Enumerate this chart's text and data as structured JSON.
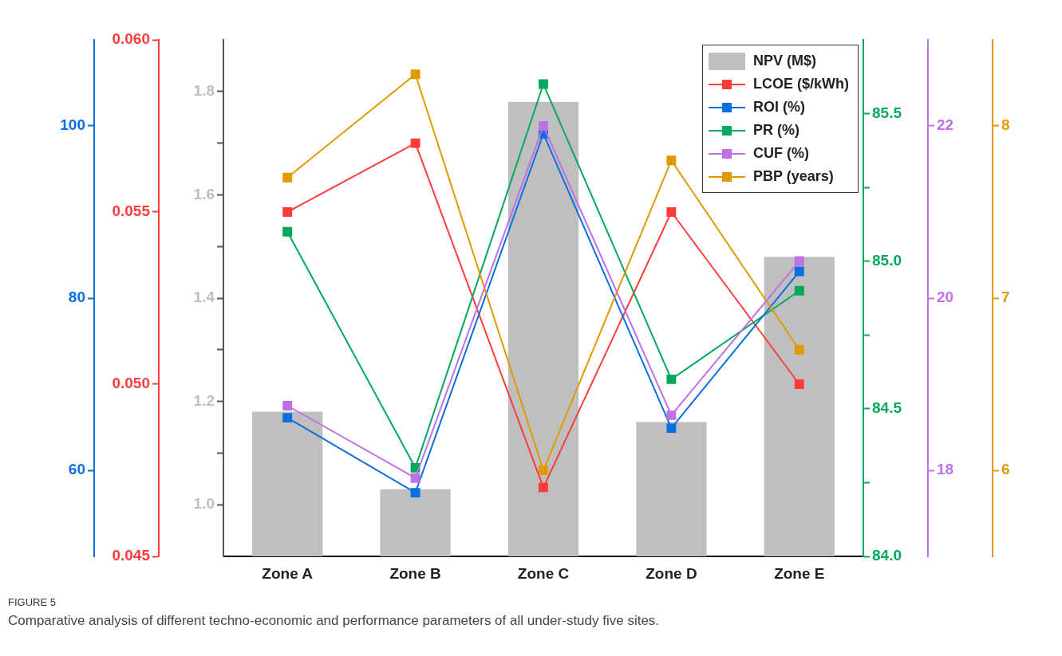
{
  "chart_data": [
    {
      "type": "bar",
      "categories": [
        "Zone A",
        "Zone B",
        "Zone C",
        "Zone D",
        "Zone E"
      ],
      "series": [
        {
          "name": "NPV (M$)",
          "color": "#bfbfbf",
          "values": [
            1.18,
            1.03,
            1.78,
            1.16,
            1.48
          ]
        },
        {
          "name": "LCOE ($/kWh)",
          "type": "line",
          "axis": "y2",
          "color": "#ff3b3b",
          "values": [
            0.055,
            0.057,
            0.047,
            0.055,
            0.05
          ]
        }
      ],
      "ylim": [
        0.9,
        1.9
      ],
      "yticks": [
        {
          "value": 1.0,
          "label": "1.0"
        },
        {
          "value": 1.1,
          "label": null
        },
        1.2,
        {
          "value": 1.3,
          "label": null
        },
        1.4,
        {
          "value": 1.5,
          "label": null
        },
        1.6,
        {
          "value": 1.7,
          "label": null
        },
        1.8
      ],
      "y2lim": [
        0.045,
        0.06
      ],
      "y2ticks": [
        {
          "value": 0.045,
          "label": "0.045"
        },
        {
          "value": 0.05,
          "label": "0.050"
        },
        {
          "value": 0.055,
          "label": "0.055"
        },
        {
          "value": 0.06,
          "label": "0.060"
        }
      ],
      "marker": "square",
      "legend": "top right",
      "annotations": [
        "FIGURE 5",
        "Comparative analysis of different techno-economic and performance parameters of all under-study five sites."
      ]
    },
    {
      "type": "line",
      "series": [
        {
          "name": "ROI (%)",
          "color": "#0a6fe0",
          "values": [
            66.1,
            57.4,
            99.1,
            64.9,
            83.1
          ]
        },
        {
          "name": "PR (%)",
          "axis": "y2",
          "color": "#00a95c",
          "values": [
            85.1,
            84.3,
            85.6,
            84.6,
            84.9
          ]
        }
      ],
      "ylim": [
        50,
        110
      ],
      "yticks": [
        60,
        80,
        100
      ],
      "y2lim": [
        84,
        85.75
      ],
      "y2ticks": [
        {
          "value": 84,
          "label": "84.0"
        },
        {
          "value": 84.25,
          "label": null
        },
        {
          "value": 84.5,
          "label": "84.5"
        },
        {
          "value": 84.75,
          "label": null
        },
        {
          "value": 85,
          "label": "85.0"
        },
        {
          "value": 85.25,
          "label": null
        },
        {
          "value": 85.5,
          "label": "85.5"
        }
      ],
      "marker": "square",
      "legend": "top right",
      "tick_labels": "y"
    },
    {
      "type": "line",
      "series": [
        {
          "name": "CUF (%)",
          "color": "#c070e6",
          "values": [
            18.75,
            17.91,
            22.0,
            18.64,
            20.43
          ]
        },
        {
          "name": "PBP (years)",
          "axis": "y2",
          "color": "#e09a00",
          "values": [
            7.7,
            8.3,
            6.0,
            7.8,
            6.7
          ]
        }
      ],
      "ylim": [
        17,
        23
      ],
      "yticks": [
        18,
        20,
        22
      ],
      "y2lim": [
        5.5,
        8.5
      ],
      "y2ticks": [
        6,
        7,
        8
      ],
      "marker": "square",
      "legend": "top right",
      "tick_labels": "y"
    }
  ]
}
